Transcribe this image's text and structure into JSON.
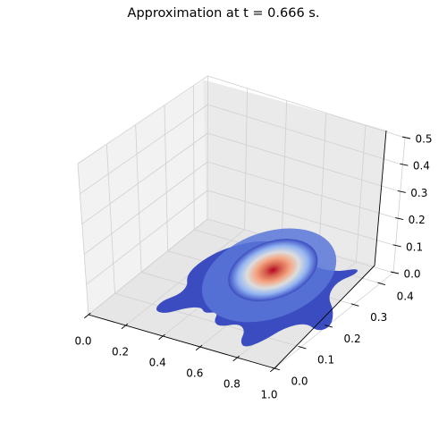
{
  "chart_data": {
    "type": "surface3d",
    "title": "Approximation at t = 0.666 s.",
    "xlabel": "",
    "ylabel": "",
    "zlabel": "",
    "x_ticks": [
      "0.0",
      "0.2",
      "0.4",
      "0.6",
      "0.8",
      "1.0"
    ],
    "y_ticks": [
      "0.0",
      "0.1",
      "0.2",
      "0.3",
      "0.4"
    ],
    "z_ticks": [
      "0.0",
      "0.1",
      "0.2",
      "0.3",
      "0.4",
      "0.5"
    ],
    "xlim": [
      0.0,
      1.0
    ],
    "ylim": [
      0.0,
      0.45
    ],
    "zlim": [
      0.0,
      0.5
    ],
    "grid": true,
    "colormap": "coolwarm",
    "peak": {
      "x": 0.62,
      "y": 0.26,
      "z": 0.08
    },
    "colors": {
      "low": "#3b4cc0",
      "mid": "#dddddd",
      "high": "#b40426"
    }
  }
}
